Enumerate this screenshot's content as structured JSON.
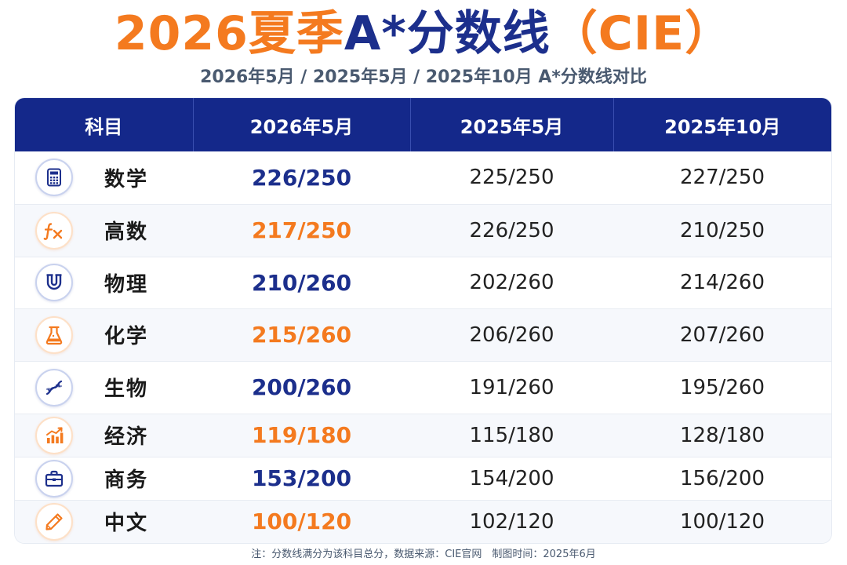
{
  "header": {
    "title_year_season": "2026夏季",
    "title_grade": "A*",
    "title_cutoff": "分数线",
    "title_board": "（CIE）",
    "subtitle": "2026年5月 / 2025年5月 / 2025年10月 A*分数线对比"
  },
  "table": {
    "columns": [
      "科目",
      "2026年5月",
      "2025年5月",
      "2025年10月"
    ],
    "rows": [
      {
        "subject": "数学",
        "icon": "calculator-icon",
        "accent": "navy",
        "may2026": "226/250",
        "may2025": "225/250",
        "oct2025": "227/250"
      },
      {
        "subject": "高数",
        "icon": "function-icon",
        "accent": "orange",
        "may2026": "217/250",
        "may2025": "226/250",
        "oct2025": "210/250"
      },
      {
        "subject": "物理",
        "icon": "magnet-icon",
        "accent": "navy",
        "may2026": "210/260",
        "may2025": "202/260",
        "oct2025": "214/260"
      },
      {
        "subject": "化学",
        "icon": "flask-icon",
        "accent": "orange",
        "may2026": "215/260",
        "may2025": "206/260",
        "oct2025": "207/260"
      },
      {
        "subject": "生物",
        "icon": "dna-icon",
        "accent": "navy",
        "may2026": "200/260",
        "may2025": "191/260",
        "oct2025": "195/260"
      },
      {
        "subject": "经济",
        "icon": "bar-chart-icon",
        "accent": "orange",
        "may2026": "119/180",
        "may2025": "115/180",
        "oct2025": "128/180"
      },
      {
        "subject": "商务",
        "icon": "briefcase-icon",
        "accent": "navy",
        "may2026": "153/200",
        "may2025": "154/200",
        "oct2025": "156/200"
      },
      {
        "subject": "中文",
        "icon": "pencil-icon",
        "accent": "orange",
        "may2026": "100/120",
        "may2025": "102/120",
        "oct2025": "100/120"
      }
    ]
  },
  "footer": {
    "note": "注：分数线满分为该科目总分，数据来源：CIE官网　制图时间：2025年6月"
  },
  "colors": {
    "navy": "#1c2f8c",
    "orange": "#f47a1f",
    "header_bg": "#14288a"
  }
}
